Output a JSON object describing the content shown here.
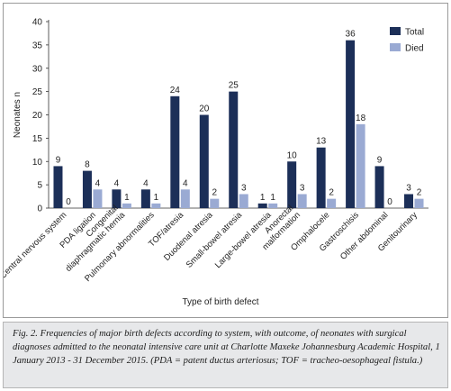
{
  "chart_data": {
    "type": "bar",
    "categories": [
      "Central nervous system",
      "PDA ligation",
      "Congenital diaphragmatic hernia",
      "Pulmonary abnormalities",
      "TOF/atresia",
      "Duodenal atresia",
      "Small-bowel atresia",
      "Large-bowel atresia",
      "Anorectal malformation",
      "Omphalocele",
      "Gastroschisis",
      "Other abdominal",
      "Genitourinary"
    ],
    "category_lines": [
      [
        "Central nervous system"
      ],
      [
        "PDA ligation"
      ],
      [
        "Congenital",
        "diaphragmatic hernia"
      ],
      [
        "Pulmonary abnormalities"
      ],
      [
        "TOF/atresia"
      ],
      [
        "Duodenal atresia"
      ],
      [
        "Small-bowel atresia"
      ],
      [
        "Large-bowel atresia"
      ],
      [
        "Anorectal",
        "malformation"
      ],
      [
        "Omphalocele"
      ],
      [
        "Gastroschisis"
      ],
      [
        "Other abdominal"
      ],
      [
        "Genitourinary"
      ]
    ],
    "series": [
      {
        "name": "Total",
        "color": "#1c2f58",
        "values": [
          9,
          8,
          4,
          4,
          24,
          20,
          25,
          1,
          10,
          13,
          36,
          9,
          3
        ]
      },
      {
        "name": "Died",
        "color": "#9aaad3",
        "values": [
          0,
          4,
          1,
          1,
          4,
          2,
          3,
          1,
          3,
          2,
          18,
          0,
          2
        ]
      }
    ],
    "xlabel": "Type of birth defect",
    "ylabel": "Neonates n",
    "ylim": [
      0,
      40
    ],
    "yticks": [
      0,
      5,
      10,
      15,
      20,
      25,
      30,
      35,
      40
    ],
    "grid": false,
    "legend_position": "top-right",
    "data_labels": true
  },
  "caption": "Fig. 2. Frequencies of major birth defects according to system, with outcome, of neonates with surgical diagnoses admitted to the neonatal intensive care unit at Charlotte Maxeke Johannesburg Academic Hospital, 1 January 2013 - 31 December 2015. (PDA = patent ductus arteriosus; TOF = tracheo-oesophageal fistula.)"
}
